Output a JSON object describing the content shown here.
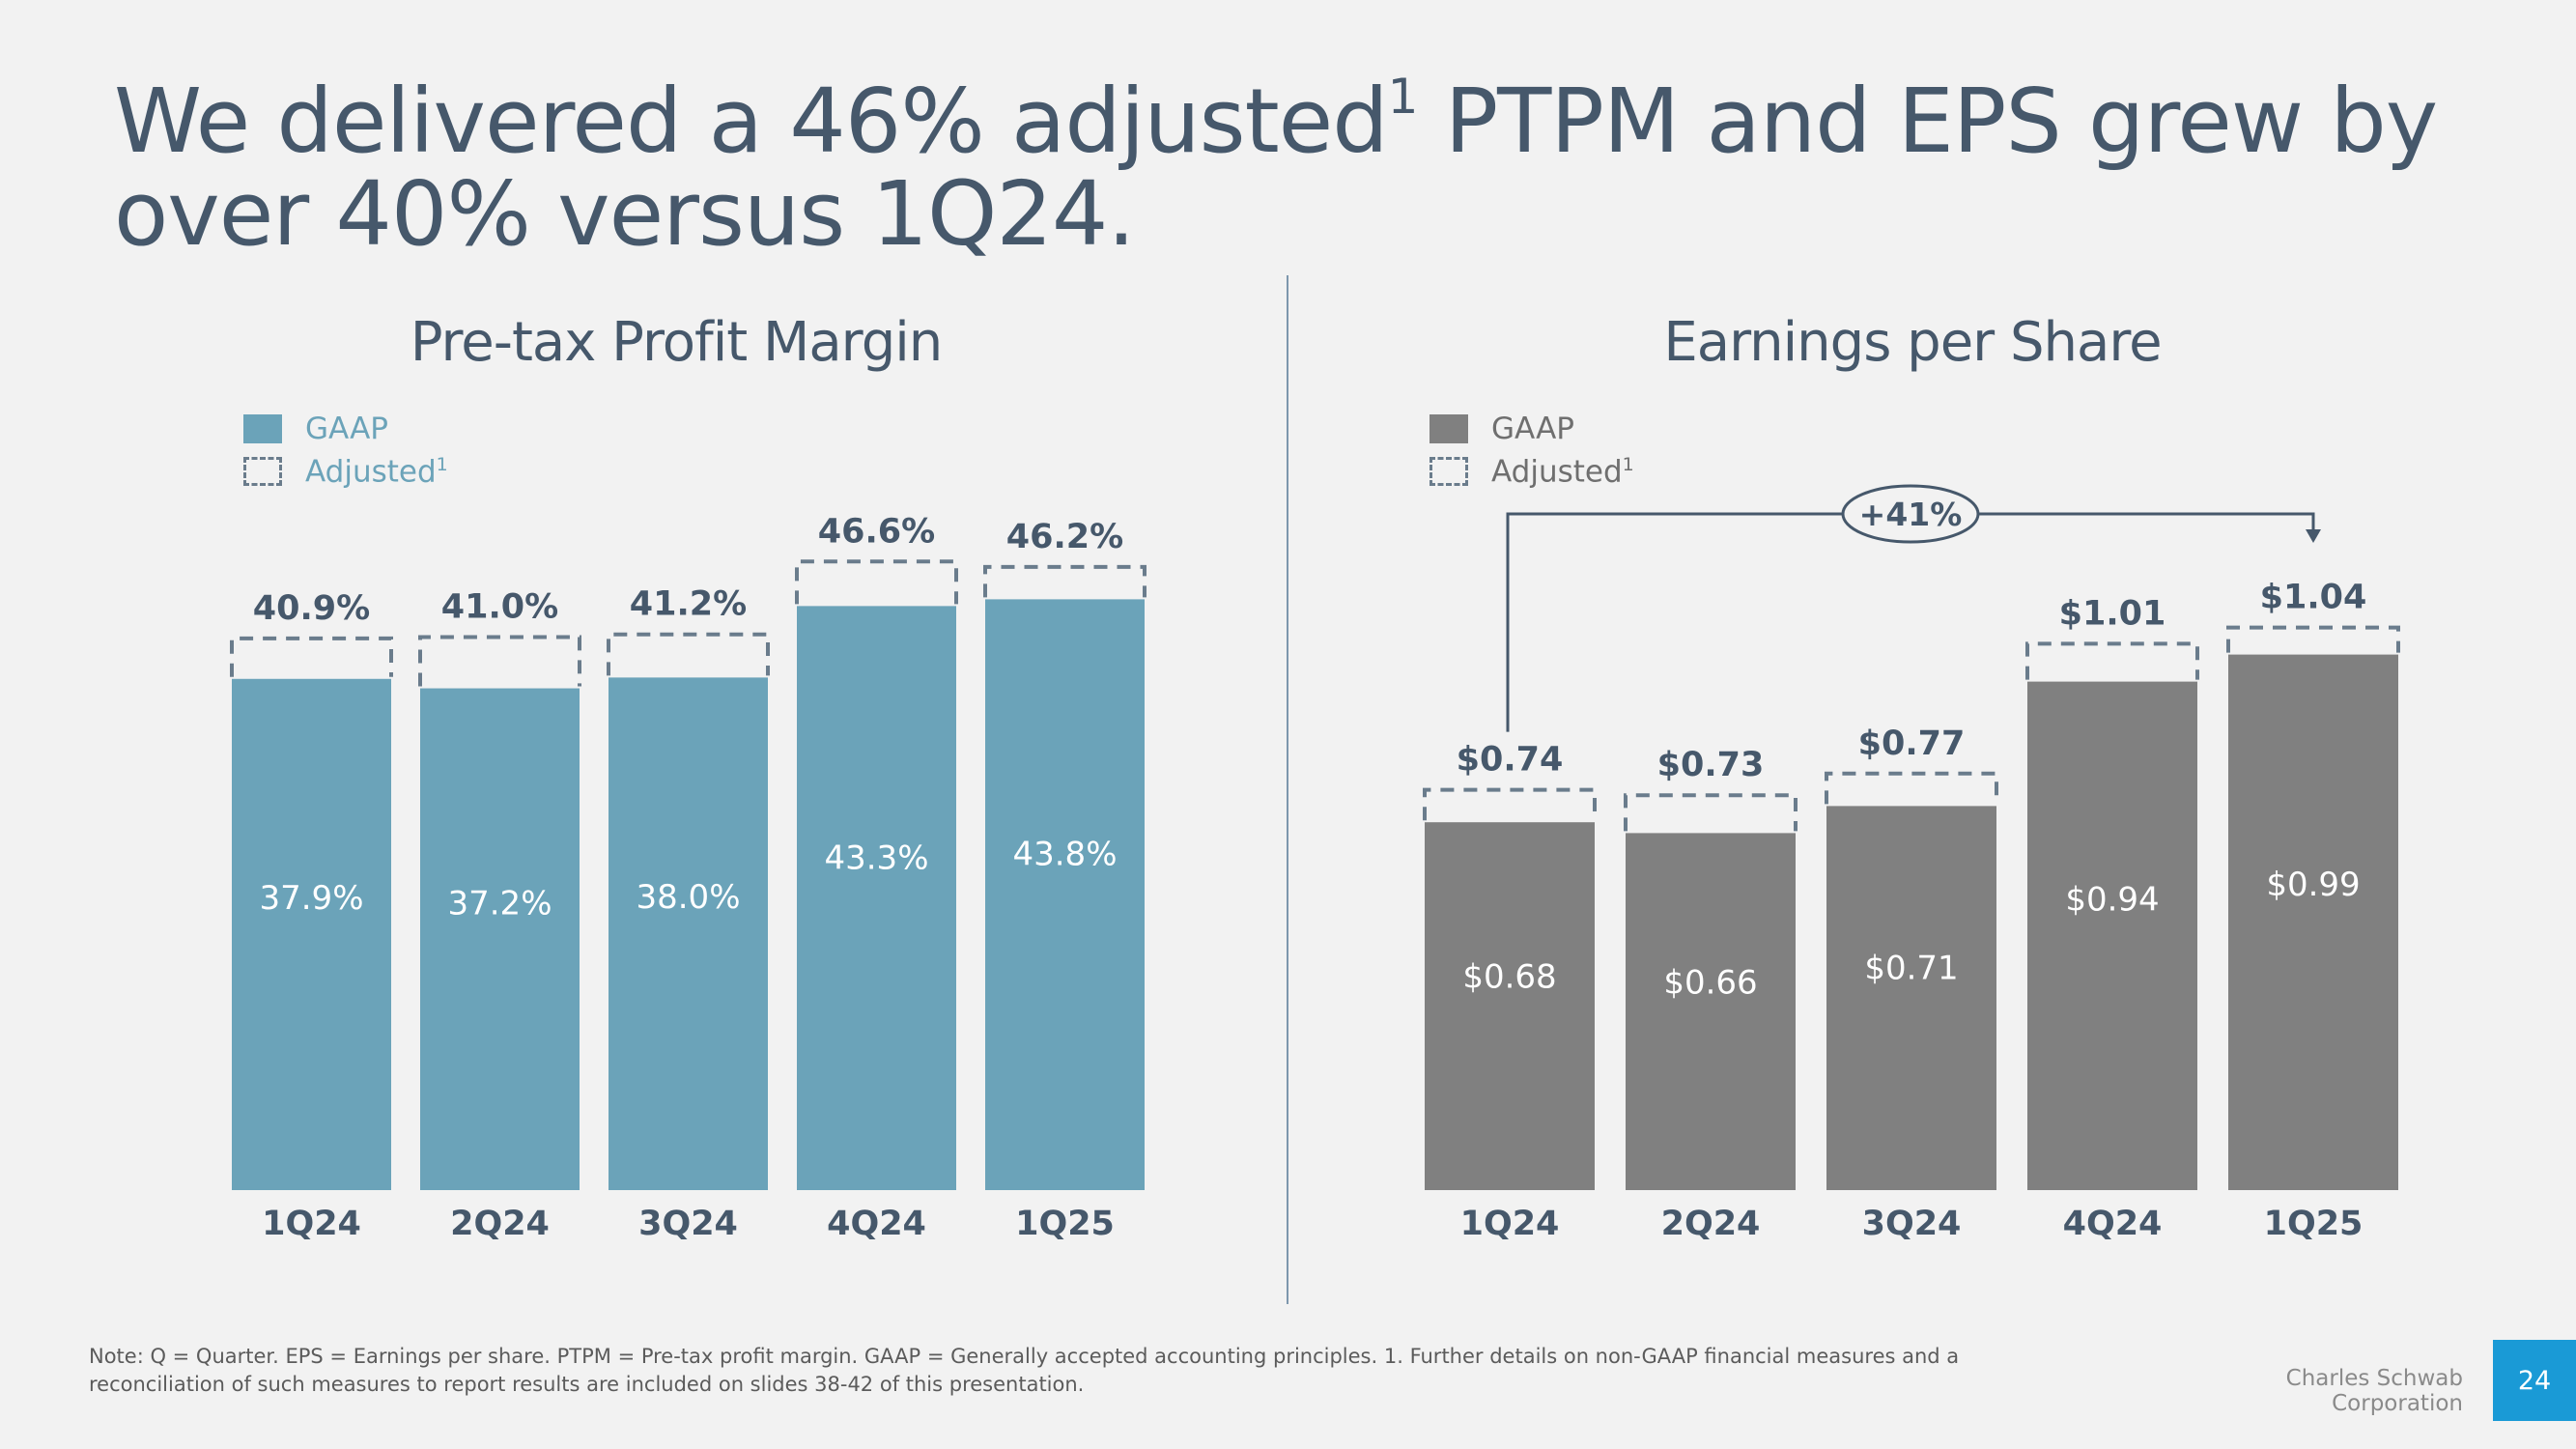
{
  "slide": {
    "headline_part1": "We delivered a 46% adjusted",
    "headline_sup": "1",
    "headline_part2": " PTPM and EPS grew by over 40% versus 1Q24.",
    "footnote": "Note: Q = Quarter. EPS = Earnings per share. PTPM = Pre-tax profit margin. GAAP = Generally accepted accounting principles. 1. Further details on non-GAAP financial measures and a reconciliation of such measures to report results are included on slides 38-42 of this presentation.",
    "company": "Charles Schwab Corporation",
    "page_number": "24"
  },
  "legend": {
    "gaap_label": "GAAP",
    "adjusted_label": "Adjusted",
    "adjusted_sup": "1"
  },
  "colors": {
    "ptpm_bar": "#6ba3b9",
    "eps_bar": "#808080",
    "dash": "#6a7c8c",
    "inner_label": "#ffffff",
    "top_label": "#46586b"
  },
  "chart_data": [
    {
      "type": "bar",
      "title": "Pre-tax Profit Margin",
      "categories": [
        "1Q24",
        "2Q24",
        "3Q24",
        "4Q24",
        "1Q25"
      ],
      "ylim": [
        0,
        55
      ],
      "series": [
        {
          "name": "GAAP",
          "values": [
            37.9,
            37.2,
            38.0,
            43.3,
            43.8
          ],
          "labels": [
            "37.9%",
            "37.2%",
            "38.0%",
            "43.3%",
            "43.8%"
          ]
        },
        {
          "name": "Adjusted",
          "values": [
            40.9,
            41.0,
            41.2,
            46.6,
            46.2
          ],
          "labels": [
            "40.9%",
            "41.0%",
            "41.2%",
            "46.6%",
            "46.2%"
          ]
        }
      ]
    },
    {
      "type": "bar",
      "title": "Earnings per Share",
      "categories": [
        "1Q24",
        "2Q24",
        "3Q24",
        "4Q24",
        "1Q25"
      ],
      "ylim": [
        0,
        1.25
      ],
      "series": [
        {
          "name": "GAAP",
          "values": [
            0.68,
            0.66,
            0.71,
            0.94,
            0.99
          ],
          "labels": [
            "$0.68",
            "$0.66",
            "$0.71",
            "$0.94",
            "$0.99"
          ]
        },
        {
          "name": "Adjusted",
          "values": [
            0.74,
            0.73,
            0.77,
            1.01,
            1.04
          ],
          "labels": [
            "$0.74",
            "$0.73",
            "$0.77",
            "$1.01",
            "$1.04"
          ]
        }
      ],
      "annotation": {
        "text": "+41%",
        "from_category": "1Q24",
        "to_category": "1Q25"
      }
    }
  ]
}
